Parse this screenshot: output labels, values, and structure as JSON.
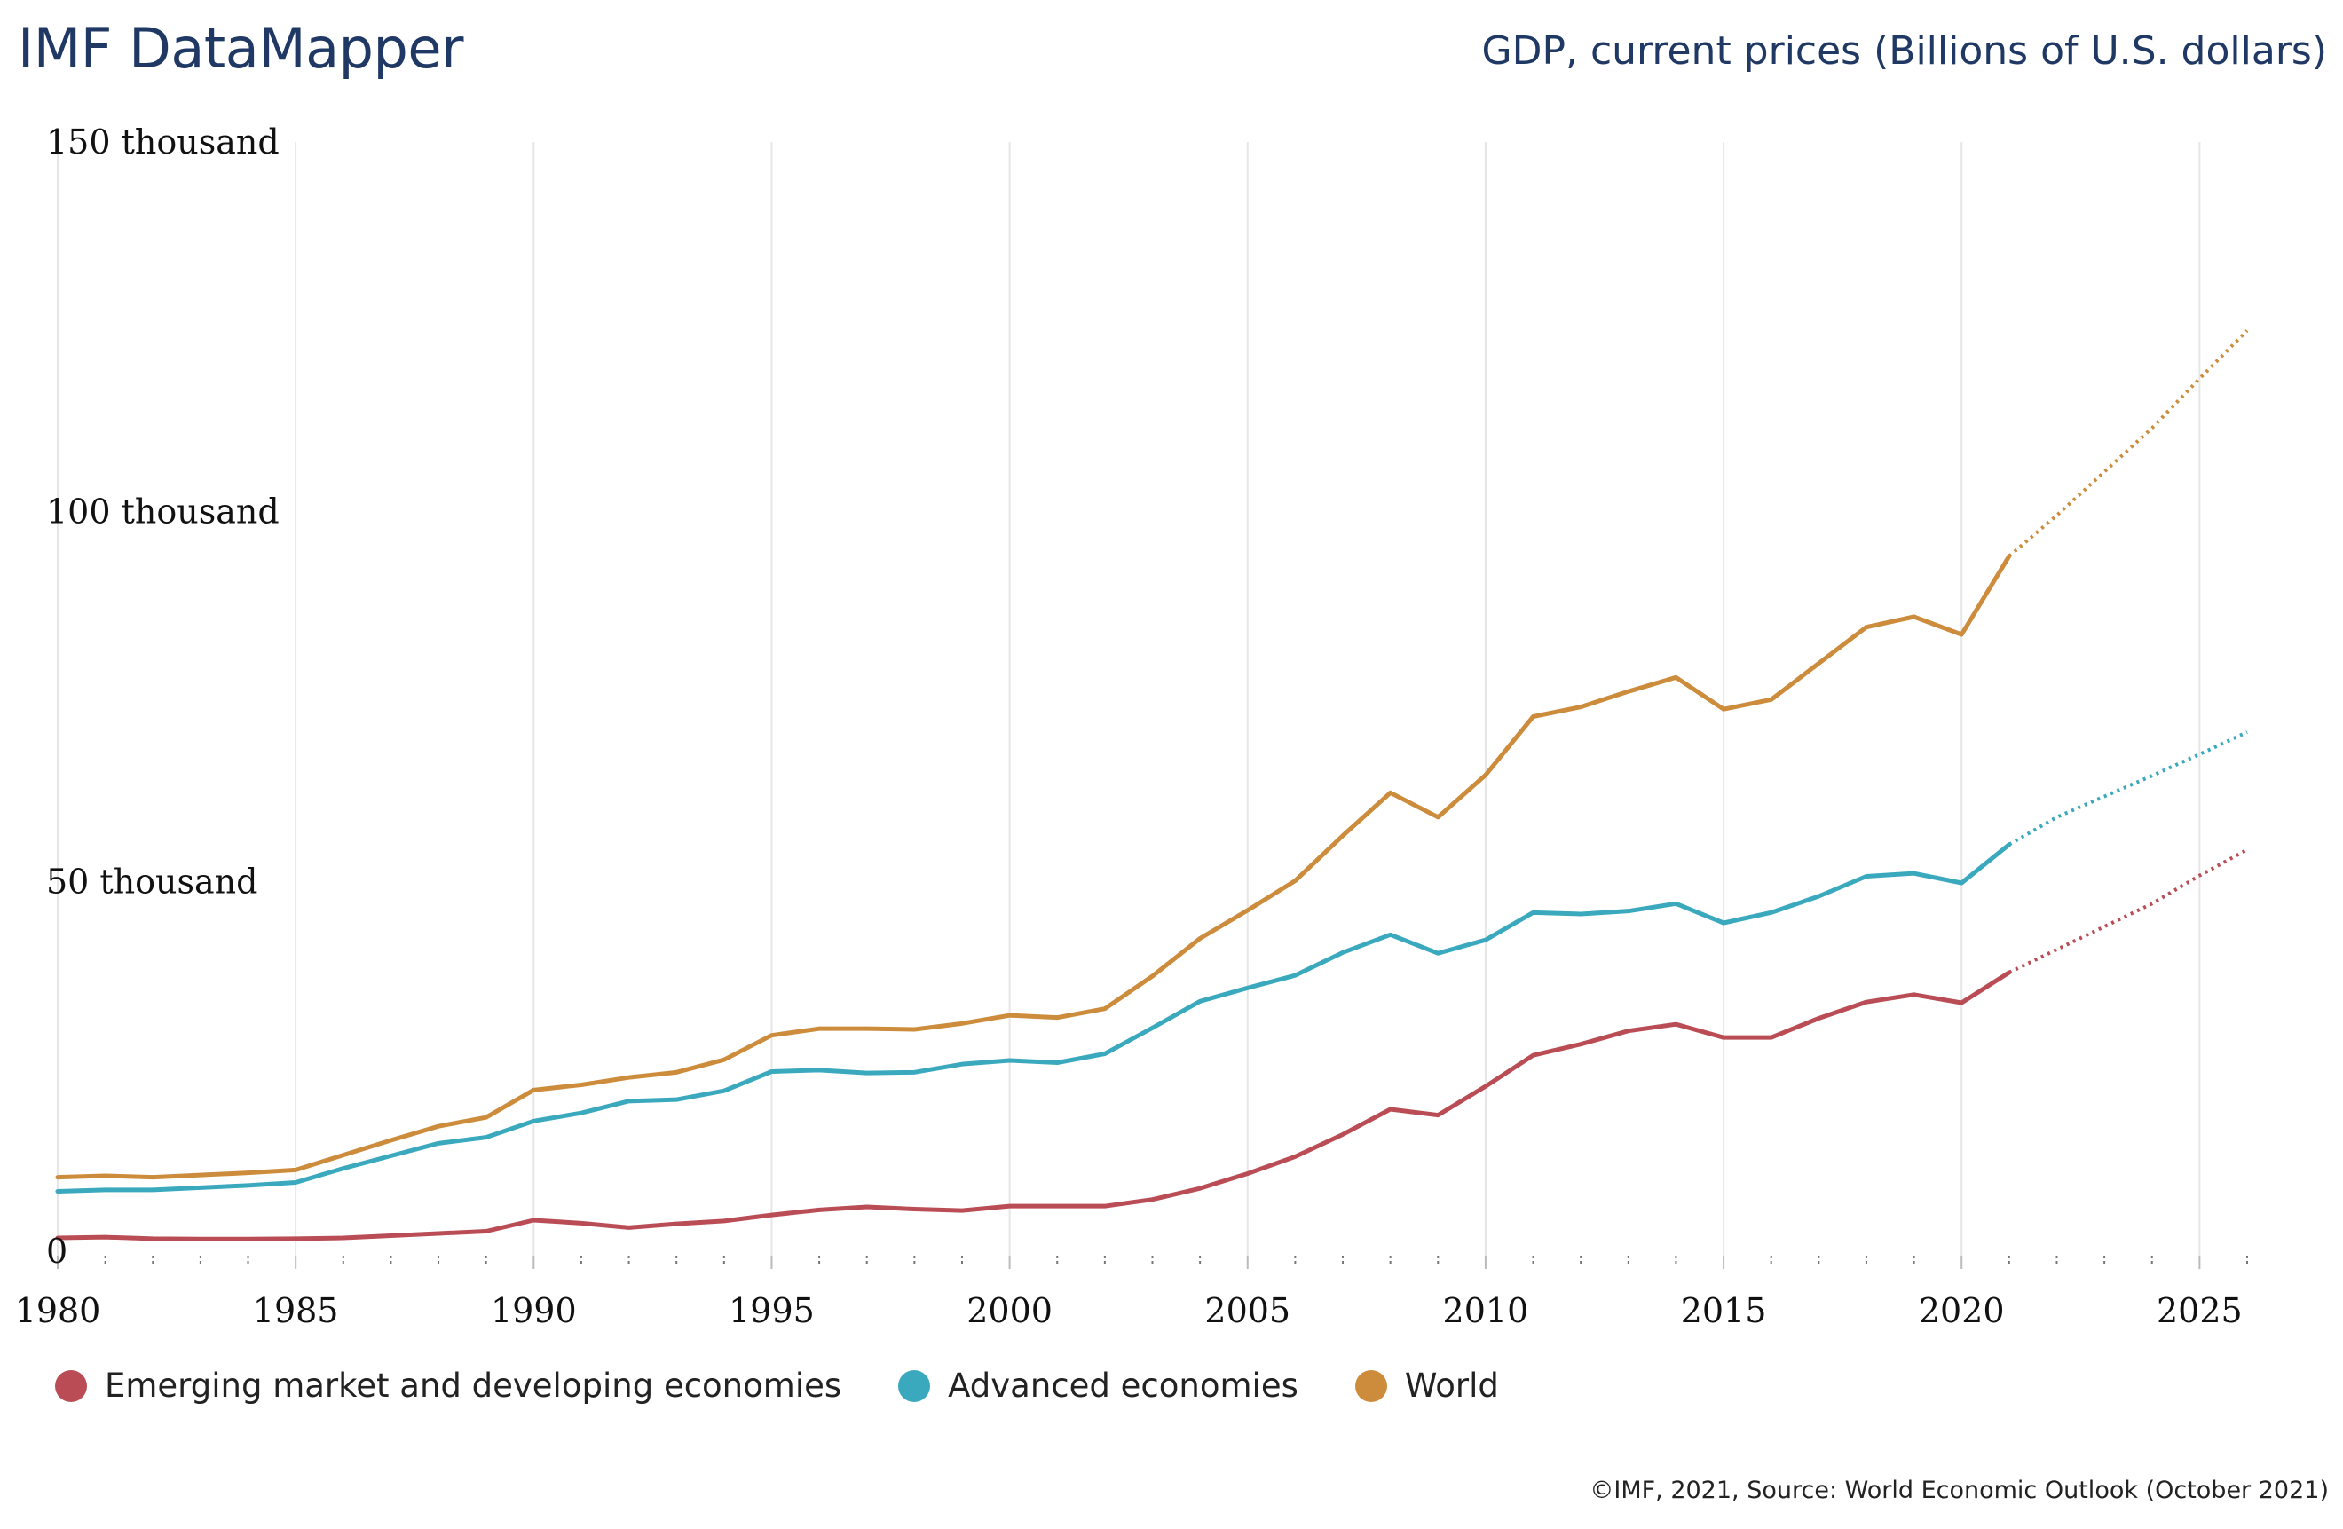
{
  "header": {
    "brand": "IMF DataMapper",
    "title": "GDP, current prices (Billions of U.S. dollars)"
  },
  "footer": {
    "source": "©IMF, 2021, Source: World Economic Outlook (October 2021)"
  },
  "chart_data": {
    "type": "line",
    "title": "GDP, current prices (Billions of U.S. dollars)",
    "xlabel": "",
    "ylabel": "",
    "xlim": [
      1980,
      2026
    ],
    "ylim": [
      0,
      150000
    ],
    "x_ticks": [
      1980,
      1985,
      1990,
      1995,
      2000,
      2005,
      2010,
      2015,
      2020,
      2025
    ],
    "x_tick_labels": [
      "1980",
      "1985",
      "1990",
      "1995",
      "2000",
      "2005",
      "2010",
      "2015",
      "2020",
      "2025"
    ],
    "y_ticks": [
      0,
      50000,
      100000,
      150000
    ],
    "y_tick_labels": [
      "0",
      "50 thousand",
      "100 thousand",
      "150 thousand"
    ],
    "grid": "vertical",
    "legend_position": "bottom-left",
    "projection_start_year": 2021,
    "x": [
      1980,
      1981,
      1982,
      1983,
      1984,
      1985,
      1986,
      1987,
      1988,
      1989,
      1990,
      1991,
      1992,
      1993,
      1994,
      1995,
      1996,
      1997,
      1998,
      1999,
      2000,
      2001,
      2002,
      2003,
      2004,
      2005,
      2006,
      2007,
      2008,
      2009,
      2010,
      2011,
      2012,
      2013,
      2014,
      2015,
      2016,
      2017,
      2018,
      2019,
      2020,
      2021,
      2022,
      2023,
      2024,
      2025,
      2026
    ],
    "series": [
      {
        "name": "Emerging market and developing economies",
        "color": "#b94c54",
        "values": [
          1800,
          1900,
          1700,
          1650,
          1650,
          1700,
          1800,
          2100,
          2400,
          2700,
          4200,
          3800,
          3200,
          3700,
          4100,
          4900,
          5600,
          6000,
          5700,
          5500,
          6100,
          6100,
          6100,
          7000,
          8500,
          10500,
          12800,
          15800,
          19200,
          18400,
          22300,
          26500,
          28000,
          29800,
          30700,
          28900,
          28900,
          31500,
          33700,
          34700,
          33600,
          37700,
          40800,
          43900,
          47000,
          50800,
          54300
        ]
      },
      {
        "name": "Advanced economies",
        "color": "#3aa9bd",
        "values": [
          8100,
          8300,
          8300,
          8600,
          8900,
          9300,
          11200,
          12900,
          14600,
          15400,
          17600,
          18700,
          20300,
          20500,
          21700,
          24300,
          24500,
          24100,
          24200,
          25300,
          25800,
          25500,
          26700,
          30200,
          33800,
          35600,
          37300,
          40400,
          42800,
          40300,
          42100,
          45800,
          45600,
          46000,
          47000,
          44400,
          45800,
          48000,
          50700,
          51100,
          49800,
          55000,
          58700,
          61500,
          64300,
          67200,
          70200
        ]
      },
      {
        "name": "World",
        "color": "#cc8c3c",
        "values": [
          10000,
          10200,
          10000,
          10300,
          10600,
          11000,
          13000,
          15000,
          16900,
          18100,
          21800,
          22500,
          23500,
          24200,
          25900,
          29200,
          30100,
          30100,
          30000,
          30800,
          31900,
          31600,
          32800,
          37200,
          42300,
          46100,
          50100,
          56200,
          62000,
          58700,
          64400,
          72300,
          73600,
          75700,
          77600,
          73300,
          74600,
          79500,
          84400,
          85800,
          83400,
          94000,
          99500,
          105400,
          111300,
          118000,
          124500
        ]
      }
    ]
  }
}
